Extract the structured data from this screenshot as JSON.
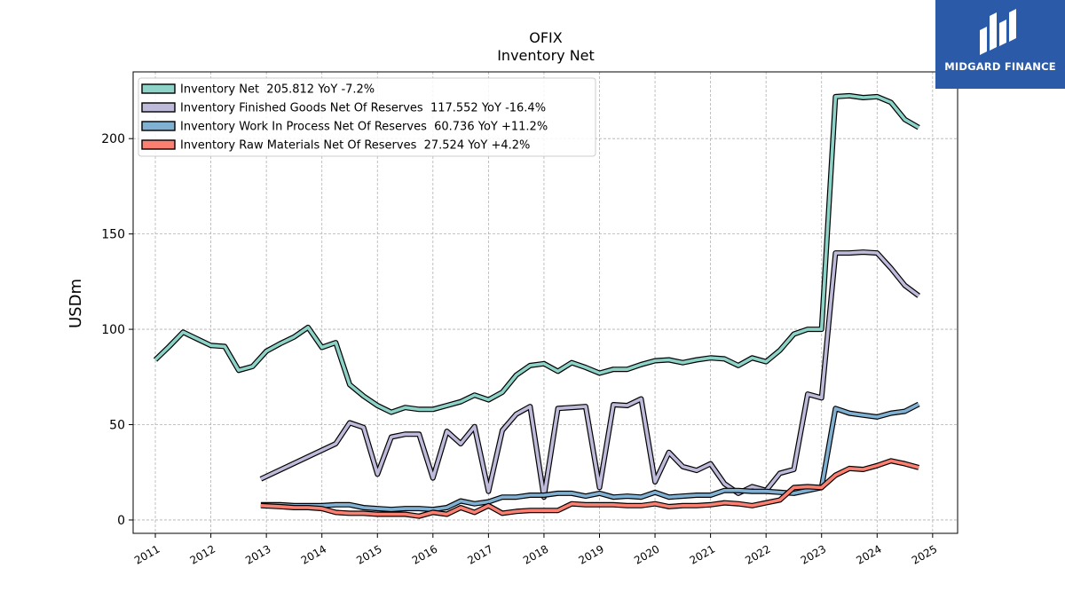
{
  "logo": {
    "name": "MIDGARD FINANCE",
    "icon": "midgard-m-logo-icon",
    "bg": "#2a5aa8"
  },
  "chart_data": {
    "type": "line",
    "title": "OFIX",
    "subtitle": "Inventory Net",
    "ylabel": "USDm",
    "xlabel": "",
    "xlim": [
      2010.6,
      2025.45
    ],
    "ylim": [
      -7,
      235
    ],
    "x_ticks": [
      2011,
      2012,
      2013,
      2014,
      2015,
      2016,
      2017,
      2018,
      2019,
      2020,
      2021,
      2022,
      2023,
      2024,
      2025
    ],
    "y_ticks": [
      0,
      50,
      100,
      150,
      200
    ],
    "grid": true,
    "legend_position": "top-left",
    "series": [
      {
        "name": "Inventory Net  205.812 YoY -7.2%",
        "color": "#8dd3c7",
        "points": [
          [
            2011.0,
            84
          ],
          [
            2011.25,
            91
          ],
          [
            2011.5,
            98.5
          ],
          [
            2011.75,
            95
          ],
          [
            2012.0,
            91.5
          ],
          [
            2012.25,
            91
          ],
          [
            2012.5,
            78.5
          ],
          [
            2012.75,
            80.5
          ],
          [
            2013.0,
            88.5
          ],
          [
            2013.25,
            92.5
          ],
          [
            2013.5,
            96
          ],
          [
            2013.75,
            101
          ],
          [
            2014.0,
            90.5
          ],
          [
            2014.25,
            93
          ],
          [
            2014.5,
            71
          ],
          [
            2014.75,
            65
          ],
          [
            2015.0,
            60
          ],
          [
            2015.25,
            56.5
          ],
          [
            2015.5,
            59
          ],
          [
            2015.75,
            58
          ],
          [
            2016.0,
            58
          ],
          [
            2016.25,
            60
          ],
          [
            2016.5,
            62
          ],
          [
            2016.75,
            65.5
          ],
          [
            2017.0,
            63
          ],
          [
            2017.25,
            67
          ],
          [
            2017.5,
            76
          ],
          [
            2017.75,
            81
          ],
          [
            2018.0,
            82
          ],
          [
            2018.25,
            78
          ],
          [
            2018.5,
            82.5
          ],
          [
            2018.75,
            80
          ],
          [
            2019.0,
            77
          ],
          [
            2019.25,
            79
          ],
          [
            2019.5,
            79
          ],
          [
            2019.75,
            81.5
          ],
          [
            2020.0,
            83.5
          ],
          [
            2020.25,
            84
          ],
          [
            2020.5,
            82.5
          ],
          [
            2020.75,
            84
          ],
          [
            2021.0,
            85
          ],
          [
            2021.25,
            84.5
          ],
          [
            2021.5,
            81
          ],
          [
            2021.75,
            85
          ],
          [
            2022.0,
            83
          ],
          [
            2022.25,
            89
          ],
          [
            2022.5,
            97.5
          ],
          [
            2022.75,
            100
          ],
          [
            2023.0,
            100
          ],
          [
            2023.25,
            222
          ],
          [
            2023.5,
            222.5
          ],
          [
            2023.75,
            221.5
          ],
          [
            2024.0,
            222
          ],
          [
            2024.25,
            219
          ],
          [
            2024.5,
            210
          ],
          [
            2024.75,
            205.8
          ]
        ]
      },
      {
        "name": "Inventory Finished Goods Net Of Reserves  117.552 YoY -16.4%",
        "color": "#bebada",
        "points": [
          [
            2012.9,
            21.5
          ],
          [
            2014.25,
            40
          ],
          [
            2014.5,
            51
          ],
          [
            2014.75,
            48.5
          ],
          [
            2015.0,
            24
          ],
          [
            2015.25,
            43.5
          ],
          [
            2015.5,
            45
          ],
          [
            2015.75,
            45
          ],
          [
            2016.0,
            22
          ],
          [
            2016.25,
            46.5
          ],
          [
            2016.5,
            40
          ],
          [
            2016.75,
            49
          ],
          [
            2017.0,
            15
          ],
          [
            2017.25,
            47
          ],
          [
            2017.5,
            55.5
          ],
          [
            2017.75,
            59.5
          ],
          [
            2018.0,
            12
          ],
          [
            2018.25,
            58.5
          ],
          [
            2018.5,
            59
          ],
          [
            2018.75,
            59.5
          ],
          [
            2019.0,
            17
          ],
          [
            2019.25,
            60.5
          ],
          [
            2019.5,
            60
          ],
          [
            2019.75,
            63.5
          ],
          [
            2020.0,
            20
          ],
          [
            2020.25,
            35.5
          ],
          [
            2020.5,
            28
          ],
          [
            2020.75,
            26
          ],
          [
            2021.0,
            29.5
          ],
          [
            2021.25,
            19
          ],
          [
            2021.5,
            14
          ],
          [
            2021.75,
            17.5
          ],
          [
            2022.0,
            15.5
          ],
          [
            2022.25,
            24.5
          ],
          [
            2022.5,
            26.5
          ],
          [
            2022.75,
            66
          ],
          [
            2023.0,
            64
          ],
          [
            2023.25,
            140
          ],
          [
            2023.5,
            140
          ],
          [
            2023.75,
            140.5
          ],
          [
            2024.0,
            140
          ],
          [
            2024.25,
            132
          ],
          [
            2024.5,
            123
          ],
          [
            2024.75,
            117.6
          ]
        ]
      },
      {
        "name": "Inventory Work In Process Net Of Reserves  60.736 YoY +11.2%",
        "color": "#80b1d3",
        "points": [
          [
            2012.9,
            8
          ],
          [
            2013.25,
            8
          ],
          [
            2013.5,
            7.5
          ],
          [
            2013.75,
            7.5
          ],
          [
            2014.0,
            7.5
          ],
          [
            2014.25,
            8
          ],
          [
            2014.5,
            8
          ],
          [
            2014.75,
            6.5
          ],
          [
            2015.0,
            6
          ],
          [
            2015.25,
            5.5
          ],
          [
            2015.5,
            6
          ],
          [
            2015.75,
            6
          ],
          [
            2016.0,
            5.5
          ],
          [
            2016.25,
            6.5
          ],
          [
            2016.5,
            10
          ],
          [
            2016.75,
            8.5
          ],
          [
            2017.0,
            9.5
          ],
          [
            2017.25,
            12
          ],
          [
            2017.5,
            12
          ],
          [
            2017.75,
            13
          ],
          [
            2018.0,
            13
          ],
          [
            2018.25,
            14
          ],
          [
            2018.5,
            14
          ],
          [
            2018.75,
            12.5
          ],
          [
            2019.0,
            14
          ],
          [
            2019.25,
            12
          ],
          [
            2019.5,
            12.5
          ],
          [
            2019.75,
            12
          ],
          [
            2020.0,
            14.5
          ],
          [
            2020.25,
            12
          ],
          [
            2020.5,
            12.5
          ],
          [
            2020.75,
            13
          ],
          [
            2021.0,
            13
          ],
          [
            2021.25,
            15.5
          ],
          [
            2021.5,
            15.5
          ],
          [
            2021.75,
            15
          ],
          [
            2022.0,
            15
          ],
          [
            2022.25,
            14.5
          ],
          [
            2022.5,
            14
          ],
          [
            2022.75,
            15.5
          ],
          [
            2023.0,
            17
          ],
          [
            2023.25,
            58.5
          ],
          [
            2023.5,
            56
          ],
          [
            2023.75,
            55
          ],
          [
            2024.0,
            54
          ],
          [
            2024.25,
            56
          ],
          [
            2024.5,
            57
          ],
          [
            2024.75,
            60.7
          ]
        ]
      },
      {
        "name": "Inventory Raw Materials Net Of Reserves  27.524 YoY +4.2%",
        "color": "#fb8072",
        "points": [
          [
            2012.9,
            7.5
          ],
          [
            2013.25,
            7
          ],
          [
            2013.5,
            6.5
          ],
          [
            2013.75,
            6.5
          ],
          [
            2014.0,
            6
          ],
          [
            2014.25,
            4
          ],
          [
            2014.5,
            3.5
          ],
          [
            2014.75,
            3.5
          ],
          [
            2015.0,
            3
          ],
          [
            2015.25,
            3
          ],
          [
            2015.5,
            3
          ],
          [
            2015.75,
            2
          ],
          [
            2016.0,
            4
          ],
          [
            2016.25,
            3
          ],
          [
            2016.5,
            6.5
          ],
          [
            2016.75,
            4
          ],
          [
            2017.0,
            7.5
          ],
          [
            2017.25,
            3.5
          ],
          [
            2017.5,
            4.5
          ],
          [
            2017.75,
            5
          ],
          [
            2018.0,
            5
          ],
          [
            2018.25,
            5
          ],
          [
            2018.5,
            8.5
          ],
          [
            2018.75,
            8
          ],
          [
            2019.0,
            8
          ],
          [
            2019.25,
            8
          ],
          [
            2019.5,
            7.5
          ],
          [
            2019.75,
            7.5
          ],
          [
            2020.0,
            8.5
          ],
          [
            2020.25,
            7
          ],
          [
            2020.5,
            7.5
          ],
          [
            2020.75,
            7.5
          ],
          [
            2021.0,
            8
          ],
          [
            2021.25,
            9
          ],
          [
            2021.5,
            8.5
          ],
          [
            2021.75,
            7.5
          ],
          [
            2022.0,
            9
          ],
          [
            2022.25,
            10.5
          ],
          [
            2022.5,
            17
          ],
          [
            2022.75,
            17.5
          ],
          [
            2023.0,
            17
          ],
          [
            2023.25,
            23.5
          ],
          [
            2023.5,
            27
          ],
          [
            2023.75,
            26.5
          ],
          [
            2024.0,
            28.5
          ],
          [
            2024.25,
            31
          ],
          [
            2024.5,
            29.5
          ],
          [
            2024.75,
            27.5
          ]
        ]
      }
    ]
  }
}
